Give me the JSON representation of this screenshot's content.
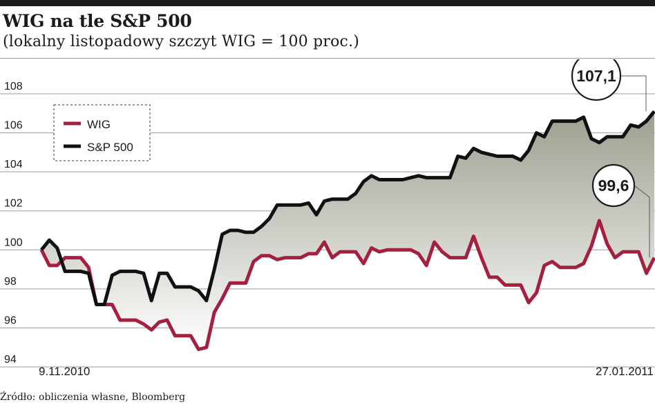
{
  "header": {
    "title": "WIG na tle S&P 500",
    "subtitle": "(lokalny listopadowy szczyt WIG = 100 proc.)"
  },
  "source": "Źródło: obliczenia własne, Bloomberg",
  "colors": {
    "wig": "#a3203f",
    "sp500": "#111111",
    "fill_top": "#9d9d8f",
    "fill_bottom": "#ffffff",
    "grid": "#9a9a9a"
  },
  "chart_data": {
    "type": "line",
    "title": "WIG na tle S&P 500",
    "subtitle": "(lokalny listopadowy szczyt WIG = 100 proc.)",
    "ylim": [
      94,
      108
    ],
    "yticks": [
      94,
      96,
      98,
      100,
      102,
      104,
      106,
      108
    ],
    "grid": true,
    "legend": "top-left",
    "x_labels": [
      "9.11.2010",
      "27.01.2011"
    ],
    "x": [
      0,
      1,
      2,
      3,
      4,
      5,
      6,
      7,
      8,
      9,
      10,
      11,
      12,
      13,
      14,
      15,
      16,
      17,
      18,
      19,
      20,
      21,
      22,
      23,
      24,
      25,
      26,
      27,
      28,
      29,
      30,
      31,
      32,
      33,
      34,
      35,
      36,
      37,
      38,
      39,
      40,
      41,
      42,
      43,
      44,
      45,
      46,
      47,
      48,
      49,
      50,
      51,
      52,
      53,
      54,
      55,
      56,
      57,
      58,
      59,
      60,
      61,
      62,
      63,
      64,
      65,
      66,
      67,
      68,
      69,
      70,
      71,
      72,
      73,
      74,
      75,
      76,
      77,
      78
    ],
    "series": [
      {
        "name": "WIG",
        "values": [
          100.0,
          99.2,
          99.2,
          99.6,
          99.6,
          99.6,
          99.1,
          97.2,
          97.2,
          97.2,
          96.4,
          96.4,
          96.4,
          96.2,
          95.9,
          96.3,
          96.4,
          95.6,
          95.6,
          95.6,
          94.9,
          95.0,
          96.8,
          97.5,
          98.3,
          98.3,
          98.3,
          99.4,
          99.7,
          99.7,
          99.5,
          99.6,
          99.6,
          99.6,
          99.8,
          99.8,
          100.4,
          99.6,
          99.9,
          99.9,
          99.9,
          99.3,
          100.1,
          99.9,
          100.0,
          100.0,
          100.0,
          100.0,
          99.8,
          99.2,
          100.4,
          99.9,
          99.6,
          99.6,
          99.6,
          100.7,
          99.6,
          98.6,
          98.6,
          98.2,
          98.2,
          98.2,
          97.3,
          97.8,
          99.2,
          99.4,
          99.1,
          99.1,
          99.1,
          99.3,
          100.2,
          101.5,
          100.3,
          99.6,
          99.9,
          99.9,
          99.9,
          98.8,
          99.6
        ],
        "end_label": "99,6"
      },
      {
        "name": "S&P 500",
        "values": [
          100.0,
          100.5,
          100.1,
          98.9,
          98.9,
          98.9,
          98.8,
          97.2,
          97.2,
          98.7,
          98.9,
          98.9,
          98.9,
          98.8,
          97.4,
          98.8,
          98.8,
          98.1,
          98.1,
          98.1,
          97.9,
          97.4,
          99.0,
          100.8,
          101.0,
          101.0,
          100.9,
          100.9,
          101.2,
          101.6,
          102.3,
          102.3,
          102.3,
          102.3,
          102.4,
          101.8,
          102.5,
          102.6,
          102.6,
          102.6,
          102.9,
          103.5,
          103.8,
          103.6,
          103.6,
          103.6,
          103.6,
          103.7,
          103.8,
          103.7,
          103.7,
          103.7,
          103.7,
          104.8,
          104.7,
          105.2,
          105.0,
          104.9,
          104.8,
          104.8,
          104.8,
          104.6,
          105.1,
          106.0,
          105.8,
          106.6,
          106.6,
          106.6,
          106.6,
          106.8,
          105.7,
          105.5,
          105.8,
          105.8,
          105.8,
          106.4,
          106.3,
          106.6,
          107.1
        ],
        "end_label": "107,1"
      }
    ]
  }
}
